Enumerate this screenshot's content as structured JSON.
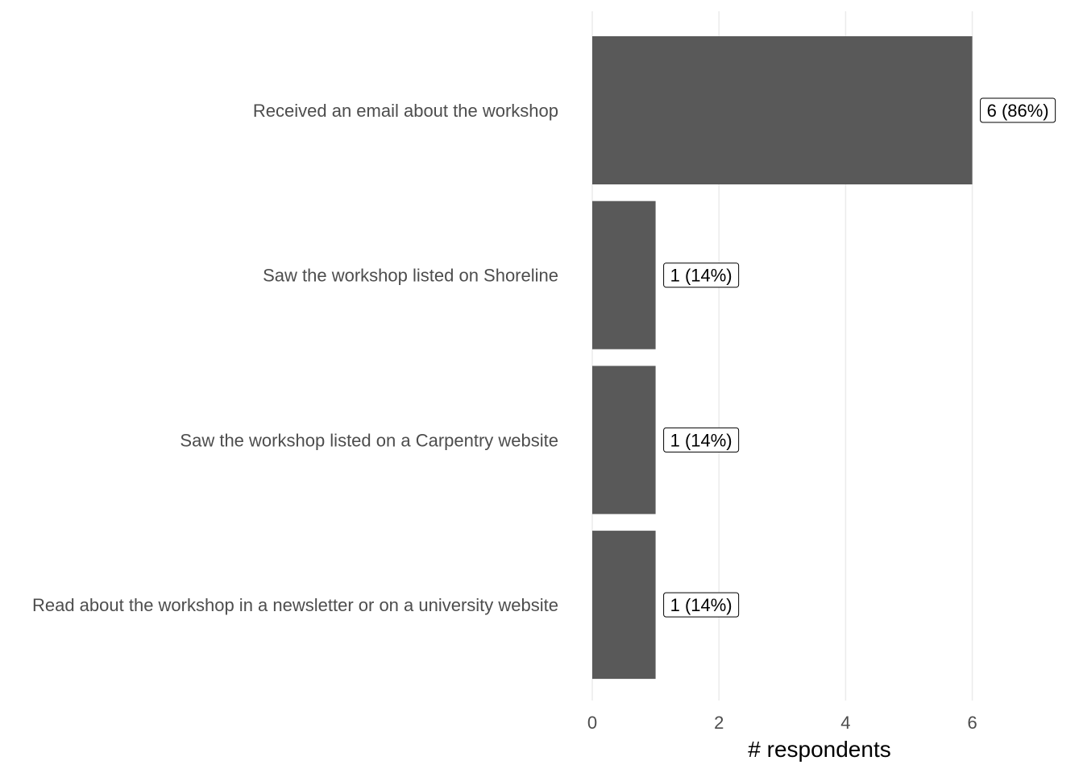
{
  "chart_data": {
    "type": "bar",
    "orientation": "horizontal",
    "categories": [
      "Received an email about the workshop",
      "Saw the workshop listed on Shoreline",
      "Saw the workshop listed on a Carpentry website",
      "Read about the workshop in a newsletter or on a university website"
    ],
    "values": [
      6,
      1,
      1,
      1
    ],
    "data_labels": [
      "6 (86%)",
      "1 (14%)",
      "1 (14%)",
      "1 (14%)"
    ],
    "xlabel": "# respondents",
    "ylabel": "",
    "xlim": [
      0,
      7.3
    ],
    "xticks": [
      "0",
      "2",
      "4",
      "6"
    ],
    "grid": "vertical major",
    "bar_color": "#595959"
  }
}
